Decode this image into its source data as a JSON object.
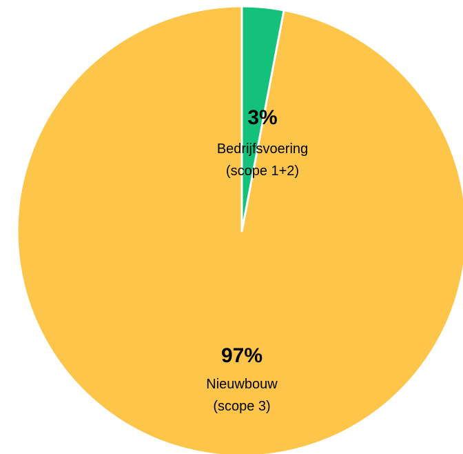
{
  "chart_data": {
    "type": "pie",
    "slices": [
      {
        "percent_label": "3%",
        "label_line1": "Bedrijfsvoering",
        "label_line2": "(scope 1+2)",
        "value": 3,
        "color": "#13c17b"
      },
      {
        "percent_label": "97%",
        "label_line1": "Nieuwbouw",
        "label_line2": "(scope 3)",
        "value": 97,
        "color": "#fdc54a"
      }
    ],
    "start_angle_deg": 0,
    "direction": "clockwise",
    "legend": "none",
    "slice_border_color": "#ffffff"
  }
}
